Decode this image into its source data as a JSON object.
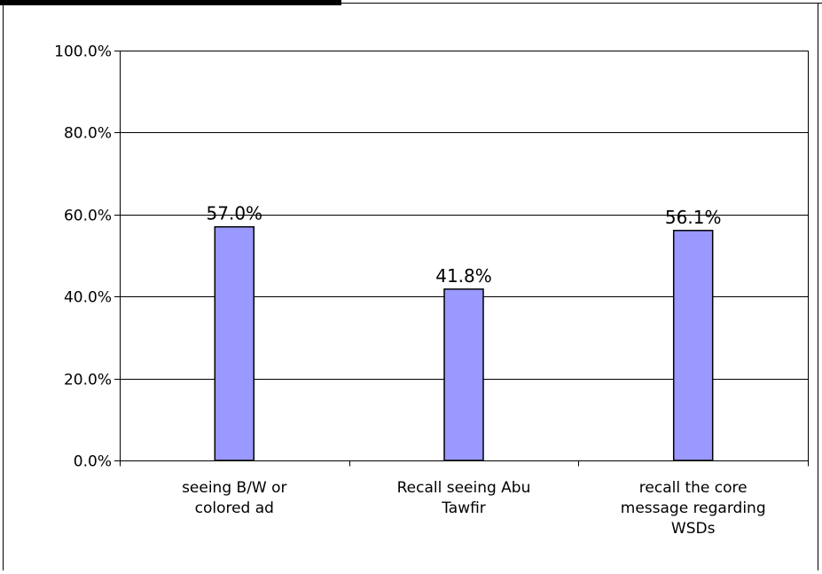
{
  "colors": {
    "bar_fill": "#9999FF",
    "bar_stroke": "#000000",
    "gridline": "#000000",
    "background": "#FFFFFF"
  },
  "chart_data": {
    "type": "bar",
    "title": "",
    "xlabel": "",
    "ylabel": "",
    "categories": [
      [
        "seeing B/W  or",
        "colored ad"
      ],
      [
        "Recall seeing Abu",
        "Tawfir"
      ],
      [
        "recall the core",
        "message regarding",
        "WSDs"
      ]
    ],
    "values": [
      57.0,
      41.8,
      56.1
    ],
    "data_labels": [
      "57.0%",
      "41.8%",
      "56.1%"
    ],
    "ylim": [
      0,
      100
    ],
    "yticks": [
      0,
      20,
      40,
      60,
      80,
      100
    ],
    "ytick_labels": [
      "0.0%",
      "20.0%",
      "40.0%",
      "60.0%",
      "80.0%",
      "100.0%"
    ],
    "grid": true,
    "legend": "none"
  }
}
